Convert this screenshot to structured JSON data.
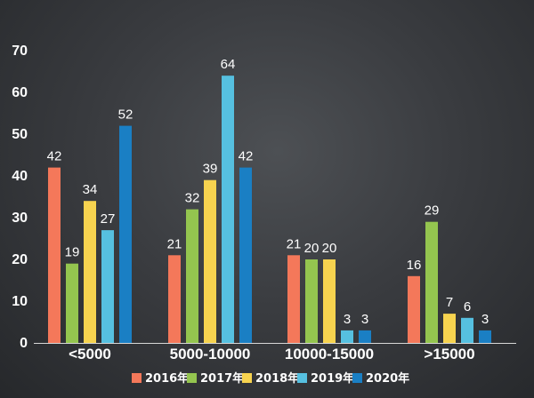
{
  "chart_data": {
    "type": "bar",
    "categories": [
      "<5000",
      "5000-10000",
      "10000-15000",
      ">15000"
    ],
    "series": [
      {
        "name": "2016年",
        "color": "#f4785a",
        "values": [
          42,
          21,
          21,
          16
        ]
      },
      {
        "name": "2017年",
        "color": "#94c54f",
        "values": [
          19,
          32,
          20,
          29
        ]
      },
      {
        "name": "2018年",
        "color": "#f7d34f",
        "values": [
          34,
          39,
          20,
          7
        ]
      },
      {
        "name": "2019年",
        "color": "#56c0e0",
        "values": [
          27,
          64,
          3,
          6
        ]
      },
      {
        "name": "2020年",
        "color": "#1a7fc4",
        "values": [
          52,
          42,
          3,
          3
        ]
      }
    ],
    "yticks": [
      0,
      10,
      20,
      30,
      40,
      50,
      60,
      70
    ],
    "ylim": [
      0,
      70
    ],
    "grid": false,
    "legend_position": "bottom",
    "title": "",
    "xlabel": "",
    "ylabel": ""
  }
}
